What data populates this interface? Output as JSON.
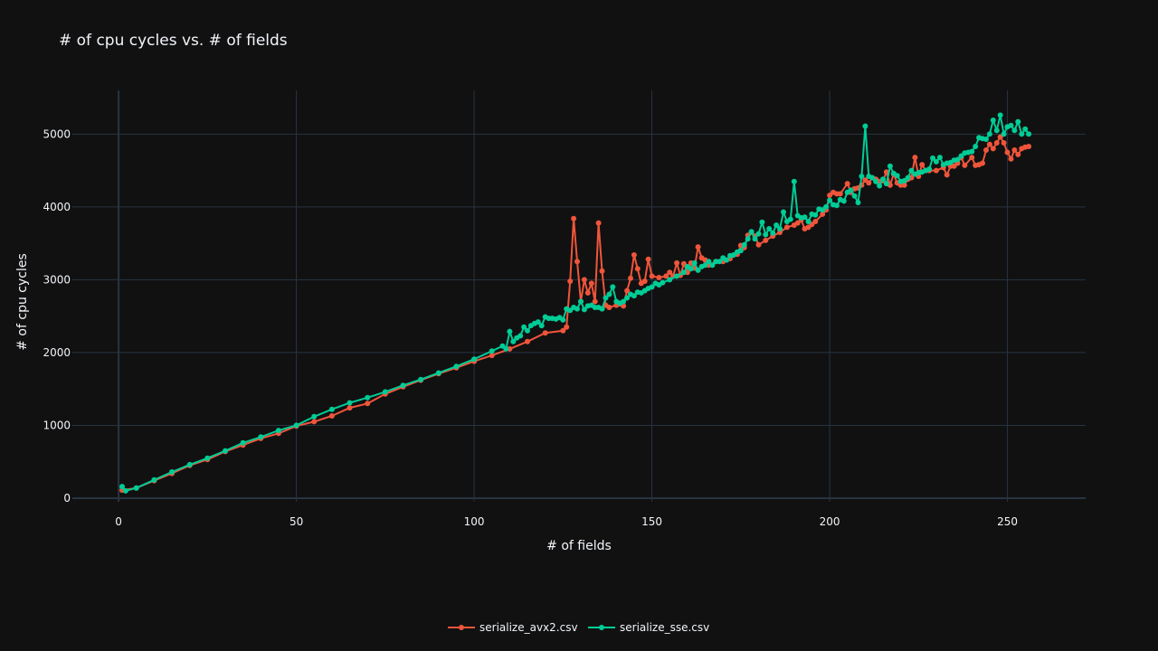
{
  "colors": {
    "background": "#111111",
    "grid": "#283442",
    "zeroline": "#283442",
    "text": "#f2f5fa"
  },
  "chart_data": {
    "type": "line",
    "title": "# of cpu cycles vs. # of fields",
    "xlabel": "# of fields",
    "ylabel": "# of cpu cycles",
    "xlim": [
      -13,
      272
    ],
    "ylim": [
      -50,
      5600
    ],
    "xticks": [
      0,
      50,
      100,
      150,
      200,
      250
    ],
    "yticks": [
      0,
      1000,
      2000,
      3000,
      4000,
      5000
    ],
    "grid": true,
    "legend_position": "bottom-center",
    "markers": true,
    "series": [
      {
        "name": "serialize_avx2.csv",
        "color": "#EF553B",
        "points": [
          [
            1,
            110
          ],
          [
            5,
            140
          ],
          [
            10,
            240
          ],
          [
            15,
            340
          ],
          [
            20,
            450
          ],
          [
            25,
            530
          ],
          [
            30,
            640
          ],
          [
            35,
            730
          ],
          [
            40,
            820
          ],
          [
            45,
            890
          ],
          [
            50,
            990
          ],
          [
            55,
            1050
          ],
          [
            60,
            1130
          ],
          [
            65,
            1240
          ],
          [
            70,
            1300
          ],
          [
            75,
            1430
          ],
          [
            80,
            1530
          ],
          [
            85,
            1620
          ],
          [
            90,
            1710
          ],
          [
            95,
            1790
          ],
          [
            100,
            1880
          ],
          [
            105,
            1960
          ],
          [
            110,
            2050
          ],
          [
            115,
            2150
          ],
          [
            120,
            2270
          ],
          [
            125,
            2300
          ],
          [
            126,
            2350
          ],
          [
            127,
            2980
          ],
          [
            128,
            3840
          ],
          [
            129,
            3250
          ],
          [
            130,
            2700
          ],
          [
            131,
            3000
          ],
          [
            132,
            2820
          ],
          [
            133,
            2950
          ],
          [
            134,
            2700
          ],
          [
            135,
            3780
          ],
          [
            136,
            3120
          ],
          [
            137,
            2650
          ],
          [
            138,
            2620
          ],
          [
            140,
            2650
          ],
          [
            142,
            2640
          ],
          [
            143,
            2850
          ],
          [
            144,
            3020
          ],
          [
            145,
            3340
          ],
          [
            146,
            3150
          ],
          [
            147,
            2950
          ],
          [
            148,
            2980
          ],
          [
            149,
            3280
          ],
          [
            150,
            3050
          ],
          [
            152,
            3030
          ],
          [
            154,
            3050
          ],
          [
            155,
            3100
          ],
          [
            156,
            3050
          ],
          [
            157,
            3230
          ],
          [
            158,
            3060
          ],
          [
            159,
            3220
          ],
          [
            160,
            3100
          ],
          [
            161,
            3230
          ],
          [
            162,
            3160
          ],
          [
            163,
            3450
          ],
          [
            164,
            3300
          ],
          [
            165,
            3270
          ],
          [
            166,
            3200
          ],
          [
            168,
            3250
          ],
          [
            170,
            3250
          ],
          [
            172,
            3290
          ],
          [
            174,
            3350
          ],
          [
            175,
            3470
          ],
          [
            176,
            3440
          ],
          [
            177,
            3610
          ],
          [
            178,
            3650
          ],
          [
            179,
            3600
          ],
          [
            180,
            3480
          ],
          [
            182,
            3540
          ],
          [
            184,
            3600
          ],
          [
            186,
            3650
          ],
          [
            188,
            3720
          ],
          [
            190,
            3750
          ],
          [
            191,
            3780
          ],
          [
            192,
            3820
          ],
          [
            193,
            3700
          ],
          [
            194,
            3720
          ],
          [
            195,
            3760
          ],
          [
            196,
            3800
          ],
          [
            198,
            3900
          ],
          [
            199,
            3960
          ],
          [
            200,
            4160
          ],
          [
            201,
            4200
          ],
          [
            202,
            4180
          ],
          [
            203,
            4180
          ],
          [
            205,
            4320
          ],
          [
            206,
            4200
          ],
          [
            207,
            4250
          ],
          [
            208,
            4260
          ],
          [
            209,
            4300
          ],
          [
            210,
            4370
          ],
          [
            211,
            4330
          ],
          [
            212,
            4400
          ],
          [
            213,
            4380
          ],
          [
            214,
            4350
          ],
          [
            215,
            4360
          ],
          [
            216,
            4480
          ],
          [
            217,
            4300
          ],
          [
            218,
            4450
          ],
          [
            219,
            4330
          ],
          [
            220,
            4300
          ],
          [
            221,
            4300
          ],
          [
            222,
            4380
          ],
          [
            223,
            4400
          ],
          [
            224,
            4680
          ],
          [
            225,
            4420
          ],
          [
            226,
            4580
          ],
          [
            227,
            4500
          ],
          [
            228,
            4500
          ],
          [
            230,
            4500
          ],
          [
            232,
            4540
          ],
          [
            233,
            4440
          ],
          [
            234,
            4560
          ],
          [
            235,
            4560
          ],
          [
            236,
            4600
          ],
          [
            237,
            4680
          ],
          [
            238,
            4570
          ],
          [
            240,
            4680
          ],
          [
            241,
            4570
          ],
          [
            242,
            4580
          ],
          [
            243,
            4600
          ],
          [
            244,
            4780
          ],
          [
            245,
            4860
          ],
          [
            246,
            4800
          ],
          [
            247,
            4880
          ],
          [
            248,
            4960
          ],
          [
            249,
            4880
          ],
          [
            250,
            4750
          ],
          [
            251,
            4660
          ],
          [
            252,
            4780
          ],
          [
            253,
            4720
          ],
          [
            254,
            4800
          ],
          [
            255,
            4820
          ],
          [
            256,
            4830
          ]
        ]
      },
      {
        "name": "serialize_sse.csv",
        "color": "#00CC96",
        "points": [
          [
            1,
            160
          ],
          [
            2,
            100
          ],
          [
            5,
            140
          ],
          [
            10,
            250
          ],
          [
            15,
            360
          ],
          [
            20,
            460
          ],
          [
            25,
            550
          ],
          [
            30,
            650
          ],
          [
            35,
            760
          ],
          [
            40,
            840
          ],
          [
            45,
            930
          ],
          [
            50,
            1000
          ],
          [
            55,
            1120
          ],
          [
            60,
            1220
          ],
          [
            65,
            1310
          ],
          [
            70,
            1380
          ],
          [
            75,
            1460
          ],
          [
            80,
            1550
          ],
          [
            85,
            1630
          ],
          [
            90,
            1720
          ],
          [
            95,
            1810
          ],
          [
            100,
            1910
          ],
          [
            105,
            2020
          ],
          [
            108,
            2090
          ],
          [
            109,
            2050
          ],
          [
            110,
            2290
          ],
          [
            111,
            2150
          ],
          [
            112,
            2200
          ],
          [
            113,
            2230
          ],
          [
            114,
            2350
          ],
          [
            115,
            2300
          ],
          [
            116,
            2370
          ],
          [
            117,
            2400
          ],
          [
            118,
            2420
          ],
          [
            119,
            2370
          ],
          [
            120,
            2490
          ],
          [
            121,
            2470
          ],
          [
            122,
            2470
          ],
          [
            123,
            2460
          ],
          [
            124,
            2480
          ],
          [
            125,
            2450
          ],
          [
            126,
            2600
          ],
          [
            127,
            2580
          ],
          [
            128,
            2620
          ],
          [
            129,
            2600
          ],
          [
            130,
            2700
          ],
          [
            131,
            2590
          ],
          [
            132,
            2640
          ],
          [
            133,
            2650
          ],
          [
            134,
            2620
          ],
          [
            135,
            2620
          ],
          [
            136,
            2600
          ],
          [
            137,
            2750
          ],
          [
            138,
            2800
          ],
          [
            139,
            2900
          ],
          [
            140,
            2700
          ],
          [
            141,
            2680
          ],
          [
            142,
            2700
          ],
          [
            143,
            2750
          ],
          [
            144,
            2800
          ],
          [
            145,
            2780
          ],
          [
            146,
            2830
          ],
          [
            147,
            2820
          ],
          [
            148,
            2850
          ],
          [
            149,
            2880
          ],
          [
            150,
            2900
          ],
          [
            151,
            2950
          ],
          [
            152,
            2930
          ],
          [
            153,
            2960
          ],
          [
            155,
            3000
          ],
          [
            157,
            3050
          ],
          [
            159,
            3100
          ],
          [
            160,
            3180
          ],
          [
            161,
            3150
          ],
          [
            162,
            3230
          ],
          [
            163,
            3130
          ],
          [
            164,
            3180
          ],
          [
            165,
            3200
          ],
          [
            166,
            3250
          ],
          [
            167,
            3200
          ],
          [
            168,
            3250
          ],
          [
            169,
            3250
          ],
          [
            170,
            3300
          ],
          [
            171,
            3270
          ],
          [
            172,
            3330
          ],
          [
            173,
            3340
          ],
          [
            174,
            3380
          ],
          [
            175,
            3400
          ],
          [
            176,
            3480
          ],
          [
            177,
            3560
          ],
          [
            178,
            3660
          ],
          [
            179,
            3560
          ],
          [
            180,
            3630
          ],
          [
            181,
            3790
          ],
          [
            182,
            3620
          ],
          [
            183,
            3700
          ],
          [
            184,
            3640
          ],
          [
            185,
            3750
          ],
          [
            186,
            3700
          ],
          [
            187,
            3930
          ],
          [
            188,
            3800
          ],
          [
            189,
            3830
          ],
          [
            190,
            4350
          ],
          [
            191,
            3880
          ],
          [
            192,
            3850
          ],
          [
            193,
            3860
          ],
          [
            194,
            3800
          ],
          [
            195,
            3900
          ],
          [
            196,
            3890
          ],
          [
            197,
            3970
          ],
          [
            198,
            3960
          ],
          [
            199,
            4000
          ],
          [
            200,
            4090
          ],
          [
            201,
            4030
          ],
          [
            202,
            4020
          ],
          [
            203,
            4100
          ],
          [
            204,
            4080
          ],
          [
            205,
            4200
          ],
          [
            206,
            4230
          ],
          [
            207,
            4150
          ],
          [
            208,
            4060
          ],
          [
            209,
            4420
          ],
          [
            210,
            5110
          ],
          [
            211,
            4420
          ],
          [
            212,
            4400
          ],
          [
            213,
            4350
          ],
          [
            214,
            4290
          ],
          [
            215,
            4380
          ],
          [
            216,
            4320
          ],
          [
            217,
            4560
          ],
          [
            218,
            4460
          ],
          [
            219,
            4430
          ],
          [
            220,
            4350
          ],
          [
            221,
            4360
          ],
          [
            222,
            4400
          ],
          [
            223,
            4500
          ],
          [
            224,
            4450
          ],
          [
            225,
            4470
          ],
          [
            226,
            4480
          ],
          [
            227,
            4500
          ],
          [
            228,
            4520
          ],
          [
            229,
            4670
          ],
          [
            230,
            4620
          ],
          [
            231,
            4680
          ],
          [
            232,
            4580
          ],
          [
            233,
            4600
          ],
          [
            234,
            4610
          ],
          [
            235,
            4640
          ],
          [
            236,
            4650
          ],
          [
            237,
            4700
          ],
          [
            238,
            4740
          ],
          [
            239,
            4750
          ],
          [
            240,
            4760
          ],
          [
            241,
            4830
          ],
          [
            242,
            4950
          ],
          [
            243,
            4940
          ],
          [
            244,
            4930
          ],
          [
            245,
            5000
          ],
          [
            246,
            5190
          ],
          [
            247,
            5050
          ],
          [
            248,
            5260
          ],
          [
            249,
            5000
          ],
          [
            250,
            5100
          ],
          [
            251,
            5120
          ],
          [
            252,
            5050
          ],
          [
            253,
            5170
          ],
          [
            254,
            5000
          ],
          [
            255,
            5070
          ],
          [
            256,
            5000
          ]
        ]
      }
    ]
  }
}
